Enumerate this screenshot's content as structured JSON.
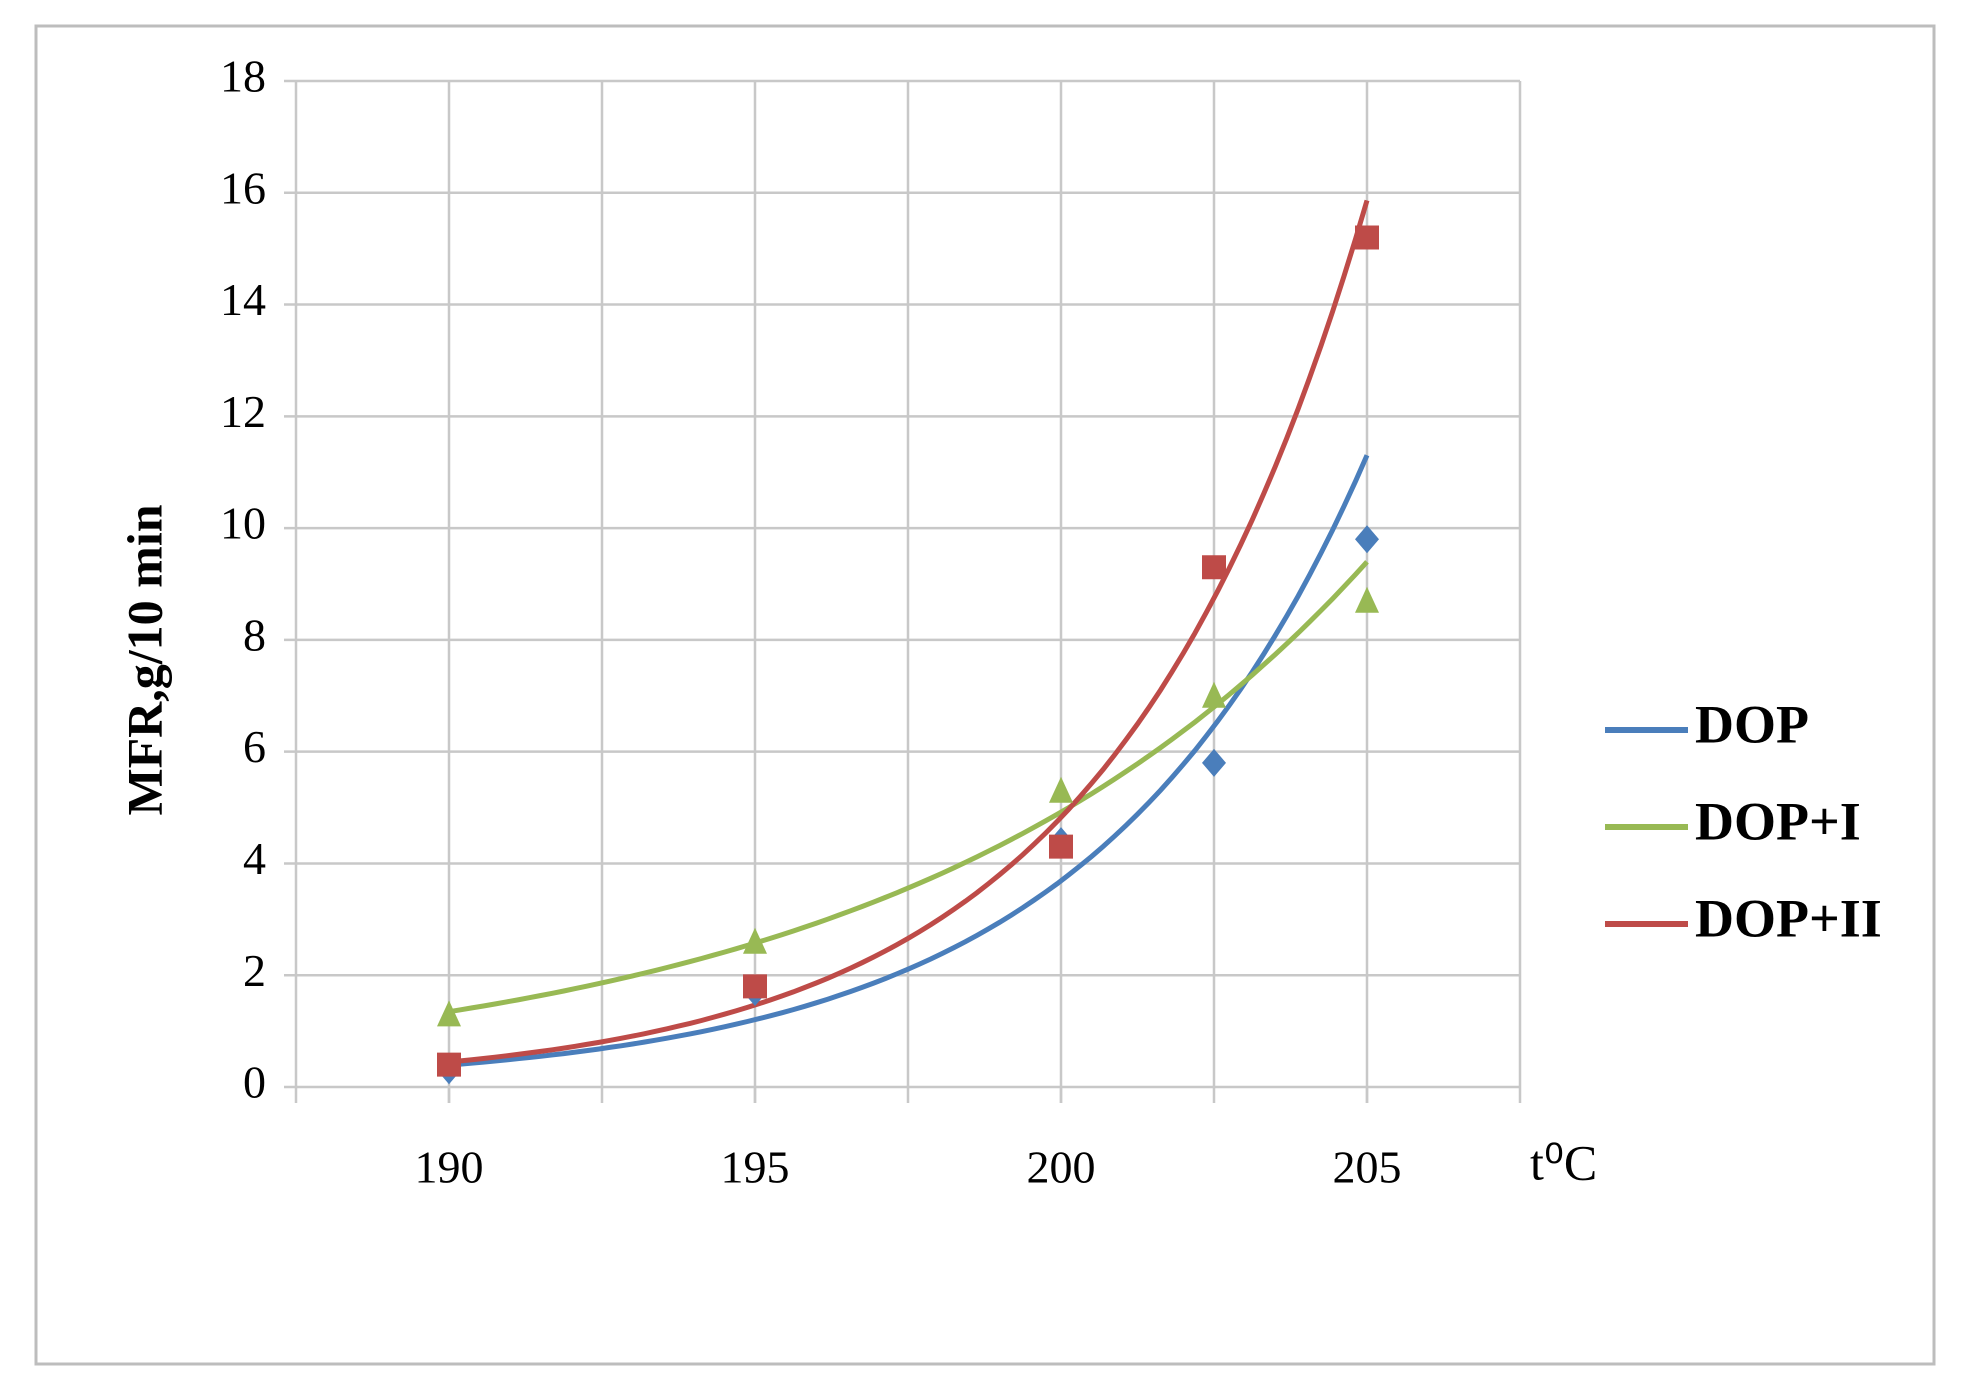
{
  "chart_data": {
    "type": "scatter",
    "y_label": "MFR,g/10 min",
    "x_label": "t⁰C",
    "x": [
      190,
      195,
      200,
      202.5,
      205
    ],
    "series": [
      {
        "name": "DOP",
        "color": "#4a7ebb",
        "marker": "diamond",
        "values": [
          0.3,
          1.7,
          4.4,
          5.8,
          9.8
        ]
      },
      {
        "name": "DOP+I",
        "color": "#98b954",
        "marker": "triangle",
        "values": [
          1.3,
          2.6,
          5.3,
          7.0,
          8.7
        ]
      },
      {
        "name": "DOP+II",
        "color": "#be4b48",
        "marker": "square",
        "values": [
          0.4,
          1.8,
          4.3,
          9.3,
          15.2
        ]
      }
    ],
    "trendline": "exponential",
    "xlim": [
      187.5,
      207.5
    ],
    "xticks": [
      190,
      195,
      200,
      205
    ],
    "x_grid_lines": [
      187.5,
      190,
      192.5,
      195,
      197.5,
      200,
      202.5,
      205,
      207.5
    ],
    "ylim": [
      0,
      18
    ],
    "yticks": [
      0,
      2,
      4,
      6,
      8,
      10,
      12,
      14,
      16,
      18
    ],
    "grid": true,
    "legend": "right"
  }
}
